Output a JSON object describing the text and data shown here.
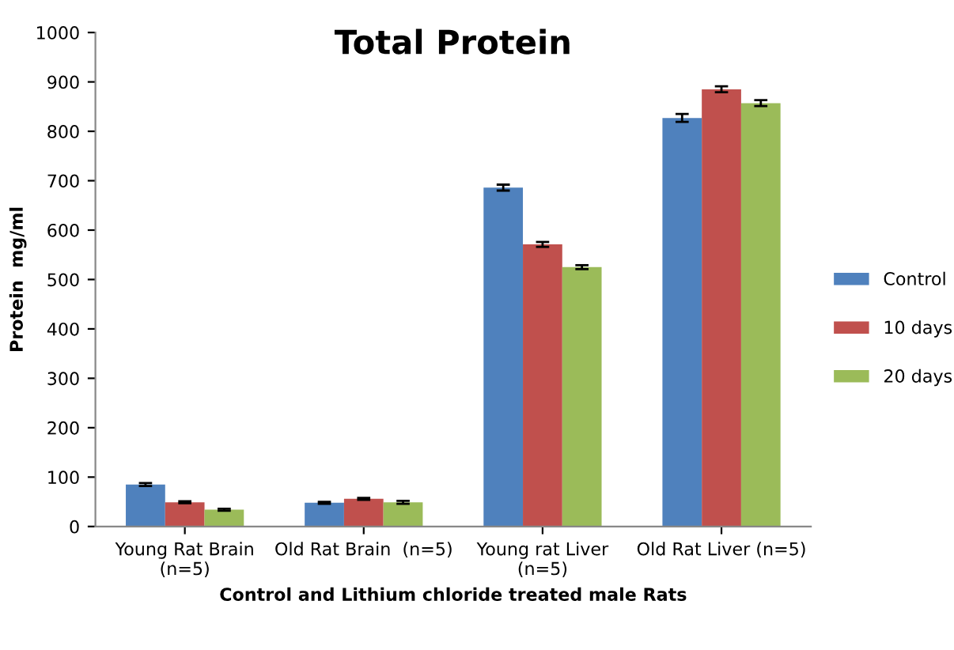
{
  "chart_data": {
    "type": "bar",
    "title": "Total Protein",
    "xlabel": "Control and Lithium chloride treated male Rats",
    "ylabel": "Protein  mg/ml",
    "categories": [
      "Young Rat Brain\n(n=5)",
      "Old Rat Brain  (n=5)",
      "Young rat Liver\n(n=5)",
      "Old Rat Liver (n=5)"
    ],
    "series": [
      {
        "name": "Control",
        "color": "#4f81bd",
        "values": [
          85,
          48,
          686,
          827
        ],
        "errors": [
          3,
          2,
          6,
          8
        ]
      },
      {
        "name": "10 days",
        "color": "#c0504d",
        "values": [
          49,
          56,
          571,
          885
        ],
        "errors": [
          2,
          2,
          5,
          6
        ]
      },
      {
        "name": "20 days",
        "color": "#9bbb59",
        "values": [
          34,
          49,
          525,
          857
        ],
        "errors": [
          2,
          3,
          4,
          6
        ]
      }
    ],
    "ylim": [
      0,
      1000
    ],
    "yticks": [
      0,
      100,
      200,
      300,
      400,
      500,
      600,
      700,
      800,
      900,
      1000
    ],
    "grid": false,
    "legend": "right"
  }
}
